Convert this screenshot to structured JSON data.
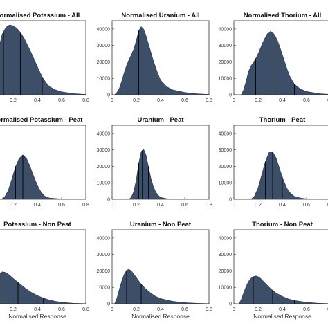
{
  "colors": {
    "fill": "#3c4e68",
    "edge": "#1f2c3f",
    "quantile_line": "#000000",
    "axis": "#333333"
  },
  "chart_data": [
    {
      "type": "area",
      "title": "Normalised Potassium - All",
      "xlabel": "",
      "xlim": [
        0,
        0.8
      ],
      "ylim": [
        0,
        45000
      ],
      "x": [
        0.02,
        0.05,
        0.08,
        0.11,
        0.14,
        0.17,
        0.2,
        0.23,
        0.26,
        0.29,
        0.32,
        0.35,
        0.38,
        0.41,
        0.44,
        0.47,
        0.5,
        0.55,
        0.6,
        0.7,
        0.8
      ],
      "y": [
        0,
        14000,
        28000,
        37000,
        41000,
        42500,
        42000,
        40500,
        38000,
        34500,
        30000,
        25500,
        20500,
        15500,
        11000,
        7500,
        5000,
        3000,
        1800,
        700,
        200
      ],
      "quantile_lines": [
        0.12,
        0.26,
        0.44
      ]
    },
    {
      "type": "area",
      "title": "Normalised Uranium - All",
      "xlabel": "",
      "xlim": [
        0,
        0.8
      ],
      "ylim": [
        0,
        45000
      ],
      "x": [
        0.02,
        0.04,
        0.06,
        0.08,
        0.1,
        0.12,
        0.14,
        0.16,
        0.18,
        0.2,
        0.22,
        0.24,
        0.26,
        0.28,
        0.3,
        0.32,
        0.34,
        0.36,
        0.38,
        0.4,
        0.45,
        0.5,
        0.6,
        0.7,
        0.8
      ],
      "y": [
        0,
        1500,
        4000,
        8500,
        13500,
        18000,
        21500,
        24500,
        28000,
        33000,
        39000,
        41500,
        40000,
        36000,
        31000,
        26000,
        21000,
        16500,
        12500,
        9000,
        5000,
        3000,
        1400,
        600,
        200
      ],
      "quantile_lines": [
        0.14,
        0.22,
        0.38
      ]
    },
    {
      "type": "area",
      "title": "Normalised Thorium - All",
      "xlabel": "",
      "xlim": [
        0,
        0.8
      ],
      "ylim": [
        0,
        45000
      ],
      "x": [
        0.06,
        0.08,
        0.1,
        0.12,
        0.14,
        0.16,
        0.18,
        0.2,
        0.22,
        0.24,
        0.26,
        0.28,
        0.3,
        0.32,
        0.34,
        0.36,
        0.38,
        0.4,
        0.42,
        0.44,
        0.46,
        0.5,
        0.55,
        0.6,
        0.7,
        0.8
      ],
      "y": [
        0,
        3000,
        8000,
        14000,
        17500,
        19500,
        22000,
        25000,
        28500,
        32000,
        35000,
        37500,
        38500,
        38000,
        36000,
        33000,
        29000,
        24500,
        20000,
        15500,
        11500,
        6500,
        3500,
        2000,
        700,
        200
      ],
      "quantile_lines": [
        0.18,
        0.34,
        0.5
      ]
    },
    {
      "type": "area",
      "title": "Normalised Potassium - Peat",
      "xlabel": "",
      "xlim": [
        0,
        0.8
      ],
      "ylim": [
        0,
        45000
      ],
      "x": [
        0.1,
        0.13,
        0.16,
        0.19,
        0.22,
        0.25,
        0.28,
        0.31,
        0.34,
        0.37,
        0.4,
        0.43,
        0.46,
        0.5,
        0.6,
        0.7
      ],
      "y": [
        0,
        1500,
        5500,
        12500,
        20000,
        25000,
        27000,
        25000,
        20000,
        14000,
        8500,
        4500,
        2000,
        800,
        200,
        0
      ],
      "quantile_lines": [
        0.22,
        0.28,
        0.34
      ]
    },
    {
      "type": "area",
      "title": "Uranium - Peat",
      "xlabel": "",
      "xlim": [
        0,
        0.8
      ],
      "ylim": [
        0,
        45000
      ],
      "x": [
        0.14,
        0.16,
        0.18,
        0.2,
        0.22,
        0.24,
        0.26,
        0.28,
        0.3,
        0.32,
        0.34,
        0.36,
        0.38,
        0.4,
        0.45,
        0.5,
        0.6
      ],
      "y": [
        0,
        1500,
        5000,
        12000,
        22000,
        29000,
        30500,
        27000,
        20000,
        13000,
        8000,
        4500,
        2500,
        1200,
        400,
        150,
        0
      ],
      "quantile_lines": [
        0.22,
        0.25,
        0.3
      ]
    },
    {
      "type": "area",
      "title": "Thorium - Peat",
      "xlabel": "",
      "xlim": [
        0,
        0.8
      ],
      "ylim": [
        0,
        45000
      ],
      "x": [
        0.14,
        0.17,
        0.2,
        0.23,
        0.26,
        0.29,
        0.32,
        0.35,
        0.38,
        0.41,
        0.44,
        0.47,
        0.5,
        0.55,
        0.6,
        0.7
      ],
      "y": [
        0,
        2000,
        7000,
        15000,
        23000,
        28500,
        29000,
        25000,
        18000,
        11500,
        6500,
        3500,
        1800,
        800,
        300,
        0
      ],
      "quantile_lines": [
        0.26,
        0.32,
        0.4
      ]
    },
    {
      "type": "area",
      "title": "Potassium - Non Peat",
      "xlabel": "Normalised Response",
      "xlim": [
        0,
        0.8
      ],
      "ylim": [
        0,
        45000
      ],
      "x": [
        0.02,
        0.05,
        0.08,
        0.11,
        0.14,
        0.17,
        0.2,
        0.25,
        0.3,
        0.35,
        0.4,
        0.45,
        0.5,
        0.55,
        0.6,
        0.7,
        0.8
      ],
      "y": [
        0,
        11000,
        17500,
        19500,
        19000,
        17500,
        15500,
        12500,
        9500,
        7000,
        5000,
        3500,
        2300,
        1500,
        900,
        300,
        100
      ],
      "quantile_lines": [
        0.1,
        0.24,
        0.45
      ]
    },
    {
      "type": "area",
      "title": "Uranium - Non Peat",
      "xlabel": "Normalised Response",
      "xlim": [
        0,
        0.8
      ],
      "ylim": [
        0,
        45000
      ],
      "x": [
        0.02,
        0.04,
        0.06,
        0.08,
        0.1,
        0.12,
        0.14,
        0.16,
        0.18,
        0.2,
        0.22,
        0.24,
        0.28,
        0.32,
        0.36,
        0.4,
        0.5,
        0.6,
        0.7,
        0.8
      ],
      "y": [
        0,
        3500,
        9000,
        14000,
        18000,
        20500,
        21000,
        20000,
        18000,
        16000,
        14000,
        12000,
        9000,
        6500,
        4500,
        3200,
        1500,
        700,
        300,
        100
      ],
      "quantile_lines": [
        0.12,
        0.24,
        0.38
      ]
    },
    {
      "type": "area",
      "title": "Thorium - Non Peat",
      "xlabel": "Normalised Response",
      "xlim": [
        0,
        0.8
      ],
      "ylim": [
        0,
        45000
      ],
      "x": [
        0.04,
        0.06,
        0.08,
        0.1,
        0.12,
        0.14,
        0.16,
        0.18,
        0.2,
        0.22,
        0.24,
        0.26,
        0.3,
        0.35,
        0.4,
        0.45,
        0.5,
        0.6,
        0.7,
        0.8
      ],
      "y": [
        0,
        2500,
        6500,
        10500,
        13500,
        15500,
        16500,
        17000,
        16500,
        15500,
        14000,
        12500,
        9500,
        6500,
        4500,
        3000,
        2000,
        900,
        300,
        100
      ],
      "quantile_lines": [
        0.16,
        0.32,
        0.5
      ]
    }
  ]
}
